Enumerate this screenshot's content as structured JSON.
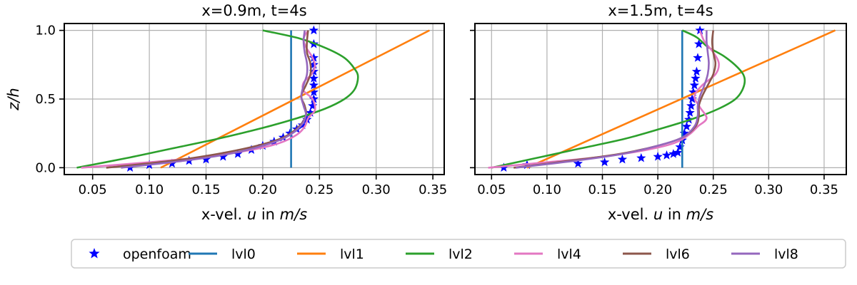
{
  "chart_data": [
    {
      "type": "line",
      "title": "x=0.9m, t=4s",
      "xlabel": "x-vel. u in m/s",
      "ylabel": "z/h",
      "xlim": [
        0.025,
        0.36
      ],
      "ylim": [
        -0.05,
        1.05
      ],
      "xticks": [
        "0.05",
        "0.10",
        "0.15",
        "0.20",
        "0.25",
        "0.30",
        "0.35"
      ],
      "yticks": [
        "0.0",
        "0.5",
        "1.0"
      ],
      "grid": true,
      "series": [
        {
          "name": "openfoam",
          "kind": "scatter",
          "color": "#0000ff",
          "x": [
            0.083,
            0.1,
            0.12,
            0.135,
            0.15,
            0.165,
            0.178,
            0.19,
            0.2,
            0.21,
            0.218,
            0.224,
            0.23,
            0.235,
            0.239,
            0.242,
            0.244,
            0.245,
            0.245,
            0.245,
            0.245,
            0.245,
            0.245,
            0.245,
            0.245,
            0.245
          ],
          "y": [
            0.0,
            0.02,
            0.03,
            0.05,
            0.06,
            0.08,
            0.1,
            0.13,
            0.16,
            0.19,
            0.22,
            0.25,
            0.28,
            0.31,
            0.35,
            0.4,
            0.45,
            0.5,
            0.55,
            0.6,
            0.65,
            0.7,
            0.75,
            0.8,
            0.9,
            1.0
          ]
        },
        {
          "name": "lvl0",
          "color": "#1f77b4",
          "x": [
            0.225,
            0.225
          ],
          "y": [
            0.0,
            1.0
          ]
        },
        {
          "name": "lvl1",
          "color": "#ff7f0e",
          "x": [
            0.11,
            0.347
          ],
          "y": [
            0.0,
            1.0
          ]
        },
        {
          "name": "lvl2",
          "color": "#2ca02c",
          "x": [
            0.036,
            0.08,
            0.12,
            0.16,
            0.2,
            0.23,
            0.255,
            0.272,
            0.281,
            0.284,
            0.281,
            0.272,
            0.256,
            0.233,
            0.2
          ],
          "y": [
            0.0,
            0.07,
            0.14,
            0.21,
            0.29,
            0.36,
            0.43,
            0.5,
            0.57,
            0.66,
            0.72,
            0.8,
            0.87,
            0.94,
            1.0
          ]
        },
        {
          "name": "lvl4",
          "color": "#e377c2",
          "x": [
            0.04,
            0.1,
            0.15,
            0.19,
            0.215,
            0.23,
            0.237,
            0.24,
            0.246,
            0.244,
            0.236,
            0.236,
            0.243,
            0.246,
            0.244,
            0.238,
            0.236,
            0.24
          ],
          "y": [
            0.0,
            0.04,
            0.08,
            0.13,
            0.18,
            0.24,
            0.3,
            0.36,
            0.42,
            0.5,
            0.56,
            0.62,
            0.68,
            0.74,
            0.8,
            0.88,
            0.94,
            1.0
          ]
        },
        {
          "name": "lvl6",
          "color": "#8c564b",
          "x": [
            0.062,
            0.12,
            0.16,
            0.195,
            0.218,
            0.232,
            0.238,
            0.237,
            0.234,
            0.238,
            0.242,
            0.242,
            0.239,
            0.239,
            0.24
          ],
          "y": [
            0.0,
            0.05,
            0.1,
            0.16,
            0.22,
            0.3,
            0.38,
            0.45,
            0.52,
            0.6,
            0.68,
            0.76,
            0.84,
            0.92,
            1.0
          ]
        },
        {
          "name": "lvl8",
          "color": "#9467bd",
          "x": [
            0.075,
            0.13,
            0.17,
            0.2,
            0.22,
            0.233,
            0.238,
            0.236,
            0.234,
            0.236,
            0.239,
            0.239,
            0.237,
            0.236,
            0.237
          ],
          "y": [
            0.0,
            0.05,
            0.1,
            0.16,
            0.22,
            0.3,
            0.38,
            0.45,
            0.52,
            0.6,
            0.68,
            0.76,
            0.84,
            0.92,
            1.0
          ]
        }
      ]
    },
    {
      "type": "line",
      "title": "x=1.5m, t=4s",
      "xlabel": "x-vel. u in m/s",
      "ylabel": "",
      "xlim": [
        0.035,
        0.37
      ],
      "ylim": [
        -0.05,
        1.05
      ],
      "xticks": [
        "0.05",
        "0.10",
        "0.15",
        "0.20",
        "0.25",
        "0.30",
        "0.35"
      ],
      "yticks": [
        "",
        "",
        ""
      ],
      "grid": true,
      "series": [
        {
          "name": "openfoam",
          "kind": "scatter",
          "color": "#0000ff",
          "x": [
            0.061,
            0.082,
            0.128,
            0.152,
            0.168,
            0.185,
            0.2,
            0.208,
            0.214,
            0.218,
            0.22,
            0.222,
            0.224,
            0.226,
            0.228,
            0.229,
            0.23,
            0.231,
            0.232,
            0.233,
            0.234,
            0.235,
            0.236,
            0.237,
            0.238
          ],
          "y": [
            0.0,
            0.02,
            0.03,
            0.04,
            0.06,
            0.07,
            0.08,
            0.09,
            0.1,
            0.11,
            0.15,
            0.2,
            0.25,
            0.3,
            0.35,
            0.4,
            0.45,
            0.5,
            0.55,
            0.6,
            0.65,
            0.7,
            0.8,
            0.9,
            1.0
          ]
        },
        {
          "name": "lvl0",
          "color": "#1f77b4",
          "x": [
            0.222,
            0.222
          ],
          "y": [
            0.0,
            1.0
          ]
        },
        {
          "name": "lvl1",
          "color": "#ff7f0e",
          "x": [
            0.082,
            0.36
          ],
          "y": [
            0.0,
            1.0
          ]
        },
        {
          "name": "lvl2",
          "color": "#2ca02c",
          "x": [
            0.05,
            0.09,
            0.13,
            0.17,
            0.205,
            0.233,
            0.255,
            0.27,
            0.277,
            0.278,
            0.272,
            0.26,
            0.245,
            0.235,
            0.222
          ],
          "y": [
            0.0,
            0.07,
            0.14,
            0.21,
            0.29,
            0.36,
            0.43,
            0.5,
            0.58,
            0.66,
            0.73,
            0.81,
            0.88,
            0.95,
            1.0
          ]
        },
        {
          "name": "lvl4",
          "color": "#e377c2",
          "x": [
            0.047,
            0.1,
            0.15,
            0.19,
            0.215,
            0.228,
            0.236,
            0.244,
            0.238,
            0.233,
            0.24,
            0.252,
            0.255,
            0.25,
            0.242,
            0.238
          ],
          "y": [
            0.0,
            0.04,
            0.08,
            0.13,
            0.18,
            0.24,
            0.3,
            0.36,
            0.44,
            0.52,
            0.6,
            0.68,
            0.76,
            0.84,
            0.92,
            1.0
          ]
        },
        {
          "name": "lvl6",
          "color": "#8c564b",
          "x": [
            0.07,
            0.12,
            0.165,
            0.2,
            0.222,
            0.234,
            0.237,
            0.237,
            0.24,
            0.245,
            0.25,
            0.252,
            0.25,
            0.249,
            0.25
          ],
          "y": [
            0.0,
            0.05,
            0.1,
            0.16,
            0.22,
            0.3,
            0.38,
            0.45,
            0.52,
            0.6,
            0.68,
            0.76,
            0.84,
            0.92,
            1.0
          ]
        },
        {
          "name": "lvl8",
          "color": "#9467bd",
          "x": [
            0.072,
            0.125,
            0.168,
            0.2,
            0.222,
            0.233,
            0.236,
            0.236,
            0.238,
            0.242,
            0.245,
            0.246,
            0.245,
            0.244,
            0.244
          ],
          "y": [
            0.0,
            0.05,
            0.1,
            0.16,
            0.22,
            0.3,
            0.38,
            0.45,
            0.52,
            0.6,
            0.68,
            0.76,
            0.84,
            0.92,
            1.0
          ]
        }
      ]
    }
  ],
  "legend": {
    "placement": "bottom-center",
    "items": [
      {
        "label": "openfoam",
        "kind": "marker",
        "color": "#0000ff"
      },
      {
        "label": "lvl0",
        "kind": "line",
        "color": "#1f77b4"
      },
      {
        "label": "lvl1",
        "kind": "line",
        "color": "#ff7f0e"
      },
      {
        "label": "lvl2",
        "kind": "line",
        "color": "#2ca02c"
      },
      {
        "label": "lvl4",
        "kind": "line",
        "color": "#e377c2"
      },
      {
        "label": "lvl6",
        "kind": "line",
        "color": "#8c564b"
      },
      {
        "label": "lvl8",
        "kind": "line",
        "color": "#9467bd"
      }
    ]
  }
}
